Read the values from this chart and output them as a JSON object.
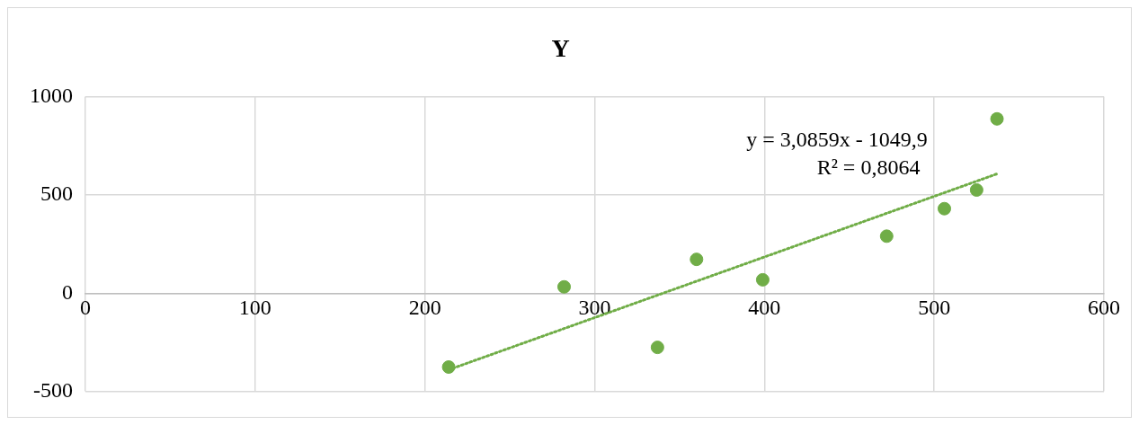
{
  "chart_data": {
    "type": "scatter",
    "title": "Y",
    "xlim": [
      0,
      600
    ],
    "xticks": [
      0,
      100,
      200,
      300,
      400,
      500,
      600
    ],
    "ylim": [
      -500,
      1000
    ],
    "yticks": [
      -500,
      0,
      500,
      1000
    ],
    "grid": true,
    "legend": false,
    "marker": "circle",
    "series": [
      {
        "color": "#70ad47",
        "x": [
          214,
          282,
          337,
          360,
          399,
          472,
          506,
          525,
          537
        ],
        "values": [
          -376,
          32,
          -276,
          172,
          68,
          290,
          430,
          525,
          887
        ]
      },
      {
        "type": "line",
        "color": "#70ad47",
        "marker": "none",
        "line_style": "dotted",
        "x": [
          214,
          537
        ],
        "values": [
          -390,
          607
        ]
      }
    ],
    "annotations": [
      "y = 3,0859x - 1049,9",
      "R² = 0,8064"
    ]
  }
}
